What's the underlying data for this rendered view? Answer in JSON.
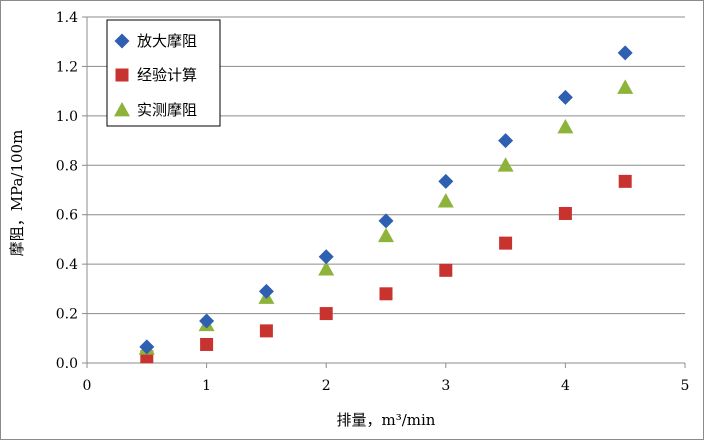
{
  "chart_data": {
    "type": "scatter",
    "title": "",
    "xlabel": "排量，m³/min",
    "ylabel": "摩阻，MPa/100m",
    "xlim": [
      0,
      5
    ],
    "ylim": [
      0,
      1.4
    ],
    "x_ticks": [
      "0",
      "1",
      "2",
      "3",
      "4",
      "5"
    ],
    "y_ticks": [
      "0.0",
      "0.2",
      "0.4",
      "0.6",
      "0.8",
      "1.0",
      "1.2",
      "1.4"
    ],
    "grid": "horizontal",
    "legend_position": "top-left",
    "series": [
      {
        "name": "放大摩阻",
        "marker": "diamond",
        "color": "#2f5fb0",
        "x": [
          0.5,
          1.0,
          1.5,
          2.0,
          2.5,
          3.0,
          3.5,
          4.0,
          4.5
        ],
        "y": [
          0.065,
          0.17,
          0.29,
          0.43,
          0.575,
          0.735,
          0.9,
          1.075,
          1.255
        ]
      },
      {
        "name": "经验计算",
        "marker": "square",
        "color": "#c8332f",
        "x": [
          0.5,
          1.0,
          1.5,
          2.0,
          2.5,
          3.0,
          3.5,
          4.0,
          4.5
        ],
        "y": [
          0.025,
          0.075,
          0.13,
          0.2,
          0.28,
          0.375,
          0.485,
          0.605,
          0.735
        ]
      },
      {
        "name": "实测摩阻",
        "marker": "triangle",
        "color": "#8db33a",
        "x": [
          0.5,
          1.0,
          1.5,
          2.0,
          2.5,
          3.0,
          3.5,
          4.0,
          4.5
        ],
        "y": [
          0.06,
          0.155,
          0.265,
          0.38,
          0.515,
          0.655,
          0.8,
          0.955,
          1.115
        ]
      }
    ]
  }
}
